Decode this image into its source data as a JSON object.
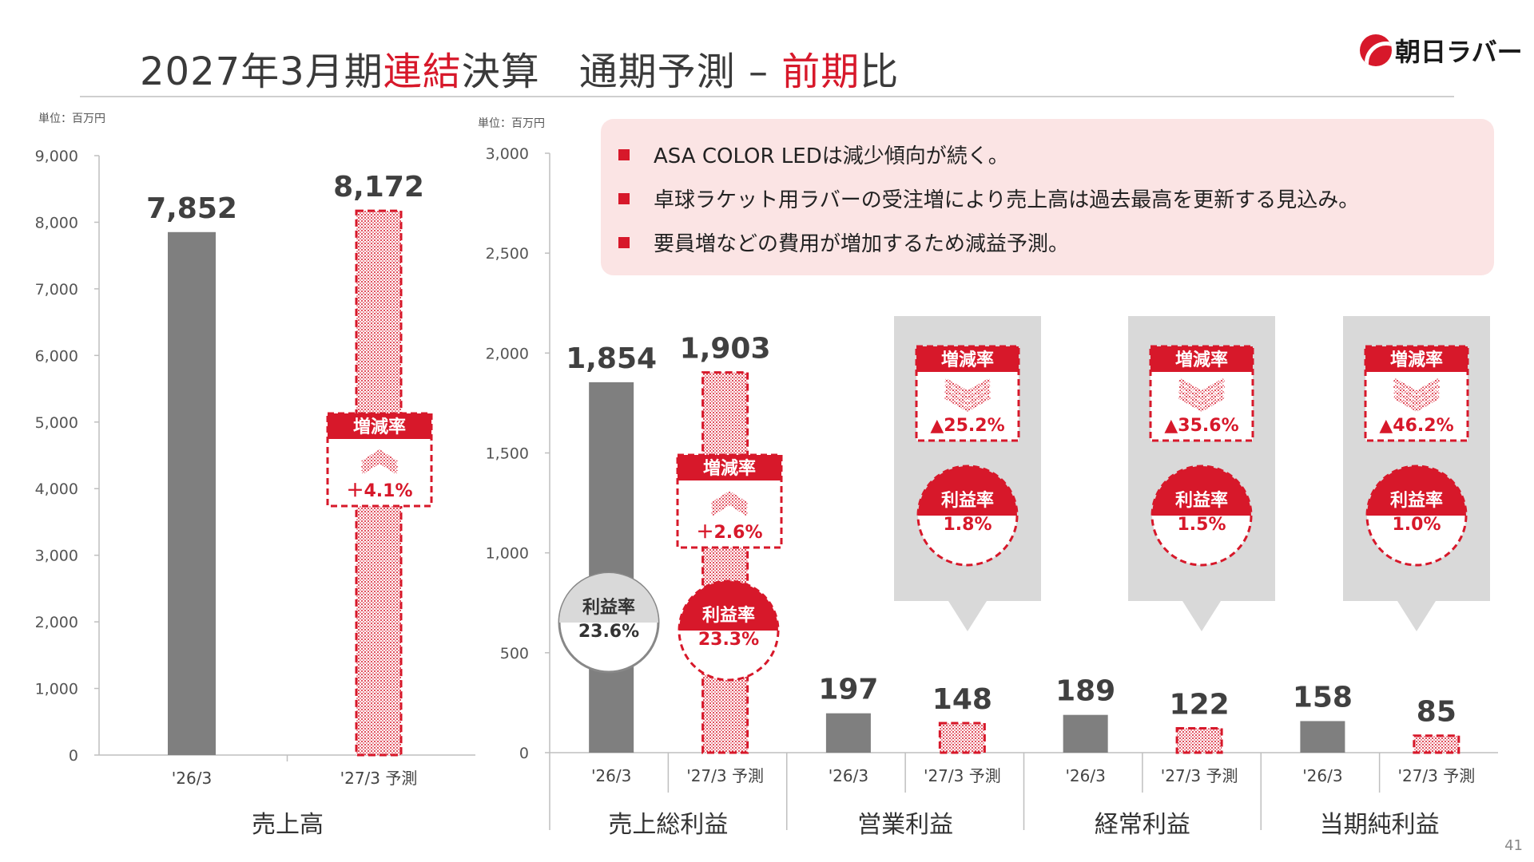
{
  "header": {
    "title_parts": [
      "2027年3月期",
      "連結",
      "決算　通期予測 – ",
      "前期",
      "比"
    ],
    "logo_text": "朝日ラバー",
    "page_number": "41"
  },
  "colors": {
    "accent": "#d7182a",
    "actual_bar": "#7f7f7f",
    "panel_gray": "#d9d9d9",
    "notes_bg": "#fbe4e4"
  },
  "units": {
    "left": "単位：百万円",
    "right": "単位：百万円"
  },
  "notes": [
    "ASA COLOR LEDは減少傾向が続く。",
    "卓球ラケット用ラバーの受注増により売上高は過去最高を更新する見込み。",
    "要員増などの費用が増加するため減益予測。"
  ],
  "labels": {
    "change_rate": "増減率",
    "profit_margin": "利益率"
  },
  "chart_data": [
    {
      "type": "bar",
      "group_label": "売上高",
      "categories": [
        "'26/3",
        "'27/3 予測"
      ],
      "values": [
        7852,
        8172
      ],
      "value_labels": [
        "7,852",
        "8,172"
      ],
      "y_ticks": [
        "0",
        "1,000",
        "2,000",
        "3,000",
        "4,000",
        "5,000",
        "6,000",
        "7,000",
        "8,000",
        "9,000"
      ],
      "ylim": [
        0,
        9000
      ],
      "change_rate": "＋4.1%",
      "change_direction": "up"
    },
    {
      "type": "bar",
      "y_ticks": [
        "0",
        "500",
        "1,000",
        "1,500",
        "2,000",
        "2,500",
        "3,000"
      ],
      "ylim": [
        0,
        3000
      ],
      "groups": [
        {
          "group_label": "売上総利益",
          "categories": [
            "'26/3",
            "'27/3 予測"
          ],
          "values": [
            1854,
            1903
          ],
          "value_labels": [
            "1,854",
            "1,903"
          ],
          "change_rate": "＋2.6%",
          "change_direction": "up",
          "margins": [
            "23.6%",
            "23.3%"
          ]
        },
        {
          "group_label": "営業利益",
          "categories": [
            "'26/3",
            "'27/3 予測"
          ],
          "values": [
            197,
            148
          ],
          "value_labels": [
            "197",
            "148"
          ],
          "change_rate": "▲25.2%",
          "change_direction": "down",
          "margins": [
            "1.8%"
          ]
        },
        {
          "group_label": "経常利益",
          "categories": [
            "'26/3",
            "'27/3 予測"
          ],
          "values": [
            189,
            122
          ],
          "value_labels": [
            "189",
            "122"
          ],
          "change_rate": "▲35.6%",
          "change_direction": "down",
          "margins": [
            "1.5%"
          ]
        },
        {
          "group_label": "当期純利益",
          "categories": [
            "'26/3",
            "'27/3 予測"
          ],
          "values": [
            158,
            85
          ],
          "value_labels": [
            "158",
            "85"
          ],
          "change_rate": "▲46.2%",
          "change_direction": "down",
          "margins": [
            "1.0%"
          ]
        }
      ]
    }
  ]
}
